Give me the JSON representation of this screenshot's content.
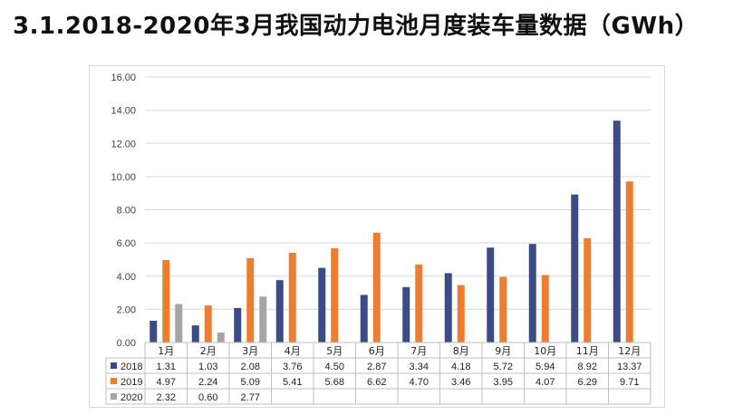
{
  "page": {
    "title": "3.1.2018-2020年3月我国动力电池月度装车量数据（GWh）"
  },
  "chart_data": {
    "type": "bar",
    "categories": [
      "1月",
      "2月",
      "3月",
      "4月",
      "5月",
      "6月",
      "7月",
      "8月",
      "9月",
      "10月",
      "11月",
      "12月"
    ],
    "series": [
      {
        "name": "2018",
        "color": "#3c4a86",
        "values": [
          1.31,
          1.03,
          2.08,
          3.76,
          4.5,
          2.87,
          3.34,
          4.18,
          5.72,
          5.94,
          8.92,
          13.37
        ],
        "labels": [
          "1.31",
          "1.03",
          "2.08",
          "3.76",
          "4.50",
          "2.87",
          "3.34",
          "4.18",
          "5.72",
          "5.94",
          "8.92",
          "13.37"
        ]
      },
      {
        "name": "2019",
        "color": "#ed7d31",
        "values": [
          4.97,
          2.24,
          5.09,
          5.41,
          5.68,
          6.62,
          4.7,
          3.46,
          3.95,
          4.07,
          6.29,
          9.71
        ],
        "labels": [
          "4.97",
          "2.24",
          "5.09",
          "5.41",
          "5.68",
          "6.62",
          "4.70",
          "3.46",
          "3.95",
          "4.07",
          "6.29",
          "9.71"
        ]
      },
      {
        "name": "2020",
        "color": "#a5a5a5",
        "values": [
          2.32,
          0.6,
          2.77,
          null,
          null,
          null,
          null,
          null,
          null,
          null,
          null,
          null
        ],
        "labels": [
          "2.32",
          "0.60",
          "2.77",
          "",
          "",
          "",
          "",
          "",
          "",
          "",
          "",
          ""
        ]
      }
    ],
    "y_ticks": [
      "0.00",
      "2.00",
      "4.00",
      "6.00",
      "8.00",
      "10.00",
      "12.00",
      "14.00",
      "16.00"
    ],
    "ylim": [
      0,
      16
    ],
    "grid": true,
    "legend": "data-table"
  }
}
